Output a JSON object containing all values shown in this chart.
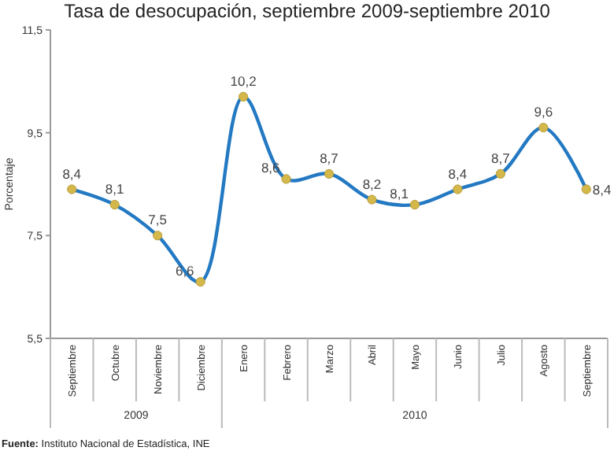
{
  "chart_data": {
    "type": "line",
    "title": "Tasa de desocupación, septiembre 2009-septiembre 2010",
    "ylabel": "Porcentaje",
    "categories": [
      "Septiembre",
      "Octubre",
      "Noviembre",
      "Diciembre",
      "Enero",
      "Febrero",
      "Marzo",
      "Abril",
      "Mayo",
      "Junio",
      "Julio",
      "Agosto",
      "Septiembre"
    ],
    "series": [
      {
        "color": "#2379c2",
        "values": [
          8.4,
          8.1,
          7.5,
          6.6,
          10.2,
          8.6,
          8.7,
          8.2,
          8.1,
          8.4,
          8.7,
          9.6,
          8.4
        ],
        "value_labels": [
          "8,4",
          "8,1",
          "7,5",
          "6,6",
          "10,2",
          "8,6",
          "8,7",
          "8,2",
          "8,1",
          "8,4",
          "8,7",
          "9,6",
          "8,4"
        ]
      }
    ],
    "ylim": [
      5.5,
      11.5
    ],
    "yticks": [
      {
        "value": 5.5,
        "label": "5,5"
      },
      {
        "value": 7.5,
        "label": "7,5"
      },
      {
        "value": 9.5,
        "label": "9,5"
      },
      {
        "value": 11.5,
        "label": "11,5"
      }
    ],
    "marker": "circle",
    "annotations": [
      "2009",
      "2010",
      "Fuente: Instituto Nacional de Estadística, INE"
    ]
  }
}
